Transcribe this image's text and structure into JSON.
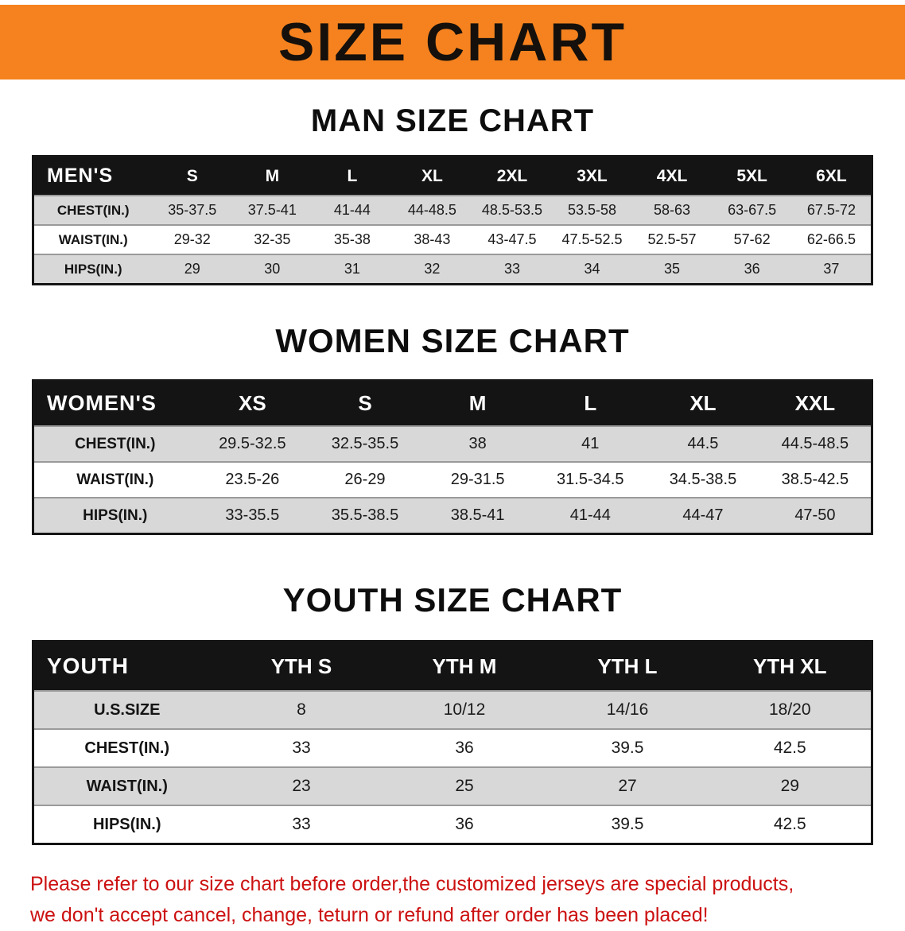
{
  "banner": {
    "title": "SIZE CHART"
  },
  "colors": {
    "banner_bg": "#f5821f",
    "header_bg": "#141414",
    "alt_row_bg": "#d8d8d8",
    "disclaimer_color": "#cc1111"
  },
  "sections": [
    {
      "heading": "MAN SIZE CHART",
      "table": {
        "header": [
          "MEN'S",
          "S",
          "M",
          "L",
          "XL",
          "2XL",
          "3XL",
          "4XL",
          "5XL",
          "6XL"
        ],
        "rows": [
          [
            "CHEST(IN.)",
            "35-37.5",
            "37.5-41",
            "41-44",
            "44-48.5",
            "48.5-53.5",
            "53.5-58",
            "58-63",
            "63-67.5",
            "67.5-72"
          ],
          [
            "WAIST(IN.)",
            "29-32",
            "32-35",
            "35-38",
            "38-43",
            "43-47.5",
            "47.5-52.5",
            "52.5-57",
            "57-62",
            "62-66.5"
          ],
          [
            "HIPS(IN.)",
            "29",
            "30",
            "31",
            "32",
            "33",
            "34",
            "35",
            "36",
            "37"
          ]
        ]
      }
    },
    {
      "heading": "WOMEN SIZE CHART",
      "table": {
        "header": [
          "WOMEN'S",
          "XS",
          "S",
          "M",
          "L",
          "XL",
          "XXL"
        ],
        "rows": [
          [
            "CHEST(IN.)",
            "29.5-32.5",
            "32.5-35.5",
            "38",
            "41",
            "44.5",
            "44.5-48.5"
          ],
          [
            "WAIST(IN.)",
            "23.5-26",
            "26-29",
            "29-31.5",
            "31.5-34.5",
            "34.5-38.5",
            "38.5-42.5"
          ],
          [
            "HIPS(IN.)",
            "33-35.5",
            "35.5-38.5",
            "38.5-41",
            "41-44",
            "44-47",
            "47-50"
          ]
        ]
      }
    },
    {
      "heading": "YOUTH SIZE CHART",
      "table": {
        "header": [
          "YOUTH",
          "YTH S",
          "YTH M",
          "YTH L",
          "YTH XL"
        ],
        "rows": [
          [
            "U.S.SIZE",
            "8",
            "10/12",
            "14/16",
            "18/20"
          ],
          [
            "CHEST(IN.)",
            "33",
            "36",
            "39.5",
            "42.5"
          ],
          [
            "WAIST(IN.)",
            "23",
            "25",
            "27",
            "29"
          ],
          [
            "HIPS(IN.)",
            "33",
            "36",
            "39.5",
            "42.5"
          ]
        ]
      }
    }
  ],
  "footer": {
    "line1": "Please refer to our size chart before order,the customized jerseys are special products,",
    "line2": "we don't accept cancel, change, teturn or refund after order has been placed!"
  }
}
